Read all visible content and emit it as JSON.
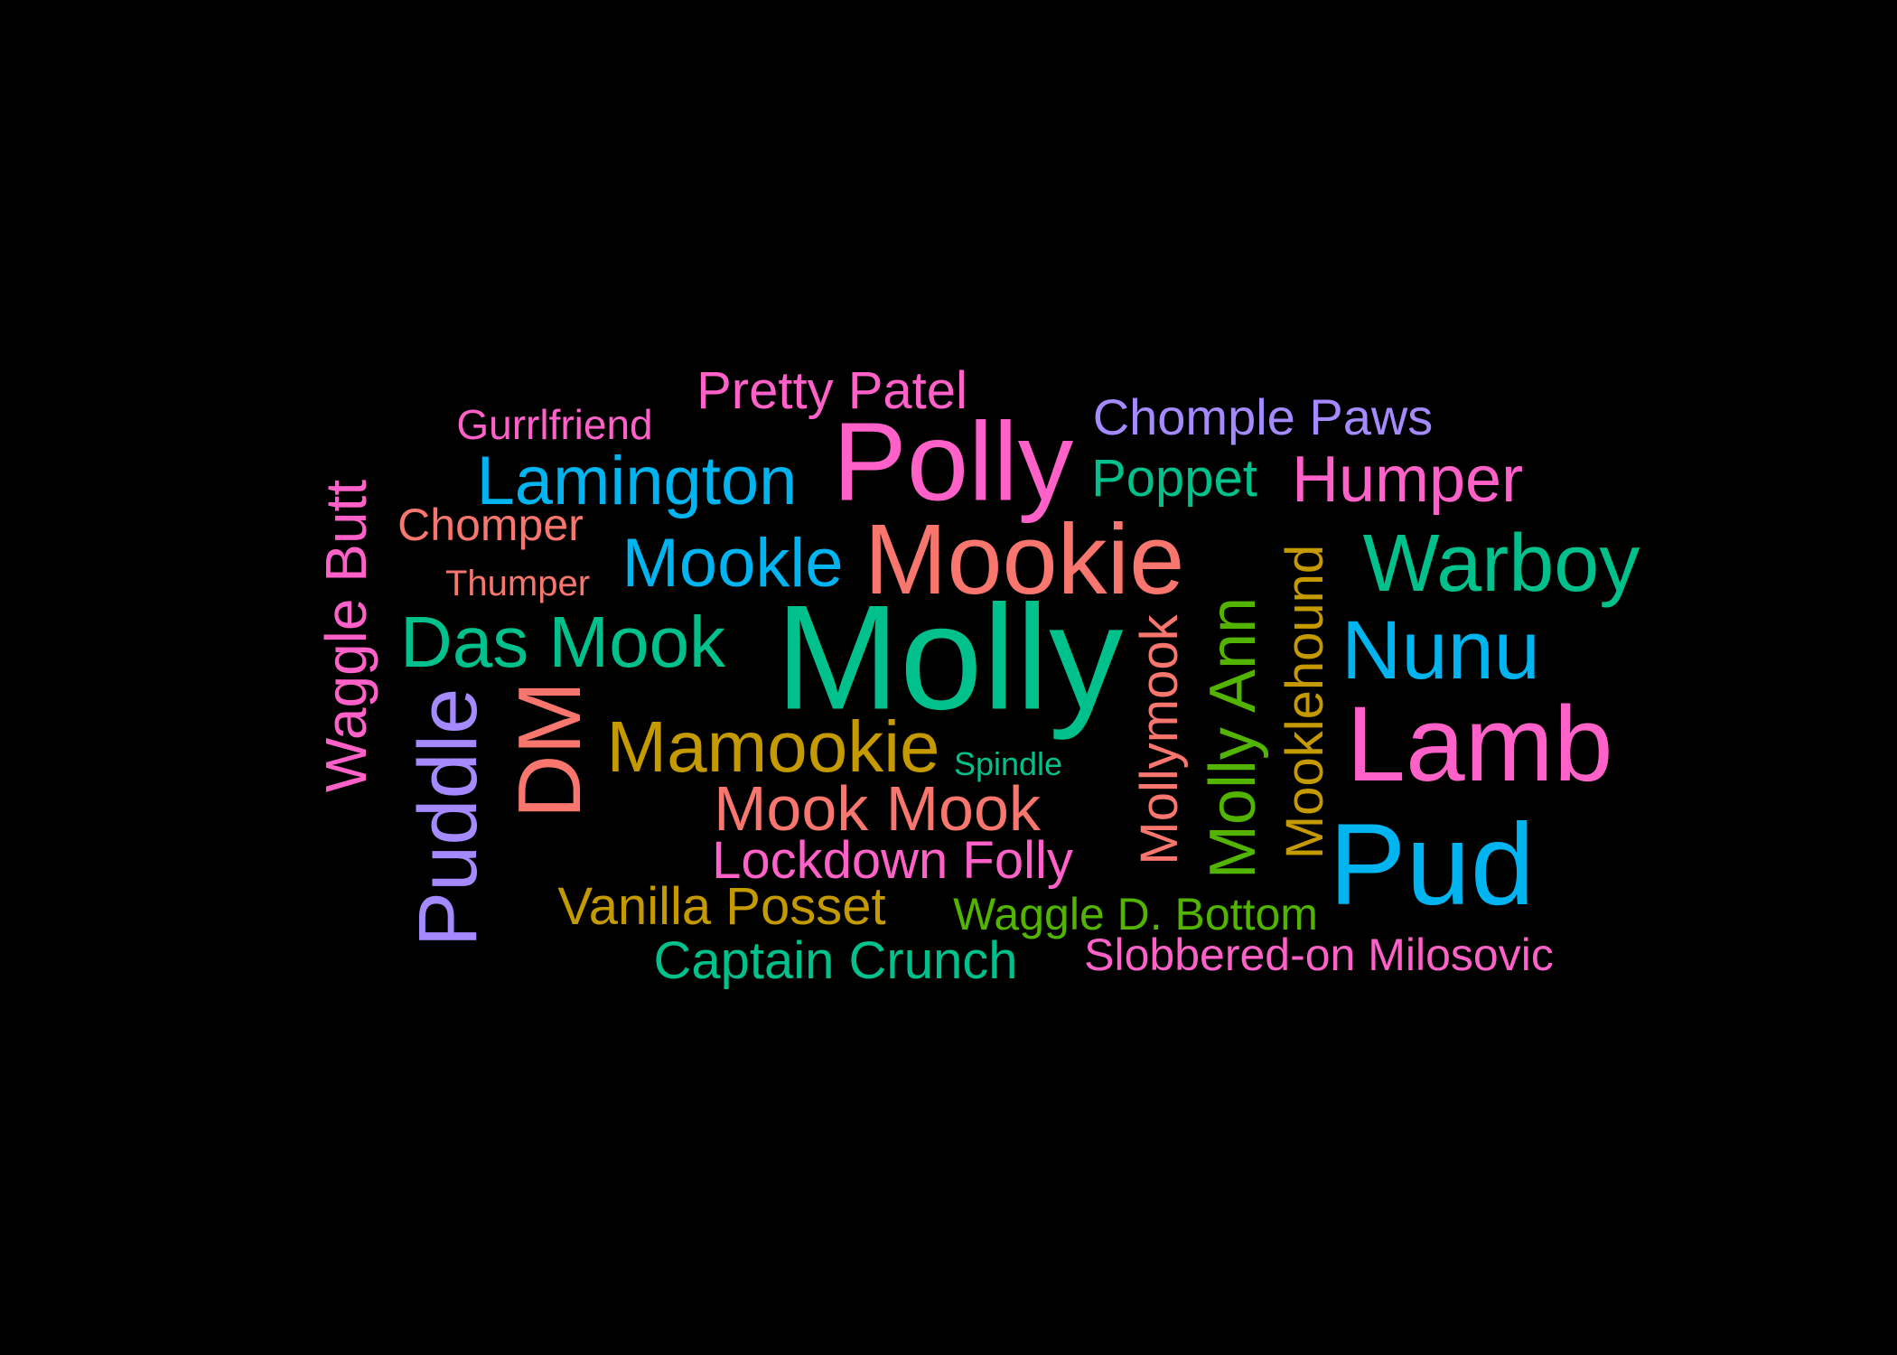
{
  "background_color": "#000000",
  "words": [
    {
      "text": "Molly",
      "color": "#00C08B",
      "rotated": false
    },
    {
      "text": "Polly",
      "color": "#FF61C9",
      "rotated": false
    },
    {
      "text": "Mookie",
      "color": "#F8766D",
      "rotated": false
    },
    {
      "text": "Lamb",
      "color": "#FF61C9",
      "rotated": false
    },
    {
      "text": "Pud",
      "color": "#00B4F0",
      "rotated": false
    },
    {
      "text": "Warboy",
      "color": "#00C08B",
      "rotated": false
    },
    {
      "text": "Nunu",
      "color": "#00B4F0",
      "rotated": false
    },
    {
      "text": "Humper",
      "color": "#FF61C9",
      "rotated": false
    },
    {
      "text": "Lamington",
      "color": "#00B4F0",
      "rotated": false
    },
    {
      "text": "Mookle",
      "color": "#00B4F0",
      "rotated": false
    },
    {
      "text": "Das Mook",
      "color": "#00C08B",
      "rotated": false
    },
    {
      "text": "Mamookie",
      "color": "#C49A00",
      "rotated": false
    },
    {
      "text": "Mook Mook",
      "color": "#F8766D",
      "rotated": false
    },
    {
      "text": "Lockdown Folly",
      "color": "#FF61C9",
      "rotated": false
    },
    {
      "text": "Vanilla Posset",
      "color": "#C49A00",
      "rotated": false
    },
    {
      "text": "Captain Crunch",
      "color": "#00C08B",
      "rotated": false
    },
    {
      "text": "Waggle D. Bottom",
      "color": "#53B400",
      "rotated": false
    },
    {
      "text": "Slobbered-on Milosovic",
      "color": "#FF61C9",
      "rotated": false
    },
    {
      "text": "Pretty Patel",
      "color": "#FF61C9",
      "rotated": false
    },
    {
      "text": "Gurrlfriend",
      "color": "#FF61C9",
      "rotated": false
    },
    {
      "text": "Chomple Paws",
      "color": "#A58AFF",
      "rotated": false
    },
    {
      "text": "Poppet",
      "color": "#00C08B",
      "rotated": false
    },
    {
      "text": "Chomper",
      "color": "#F8766D",
      "rotated": false
    },
    {
      "text": "Thumper",
      "color": "#F8766D",
      "rotated": false
    },
    {
      "text": "Spindle",
      "color": "#00C08B",
      "rotated": false
    },
    {
      "text": "Waggle Butt",
      "color": "#FF61C9",
      "rotated": true
    },
    {
      "text": "Puddle",
      "color": "#A58AFF",
      "rotated": true
    },
    {
      "text": "DM",
      "color": "#F8766D",
      "rotated": true
    },
    {
      "text": "Mollymook",
      "color": "#F8766D",
      "rotated": true
    },
    {
      "text": "Molly Ann",
      "color": "#53B400",
      "rotated": true
    },
    {
      "text": "Mooklehound",
      "color": "#C49A00",
      "rotated": true
    }
  ]
}
